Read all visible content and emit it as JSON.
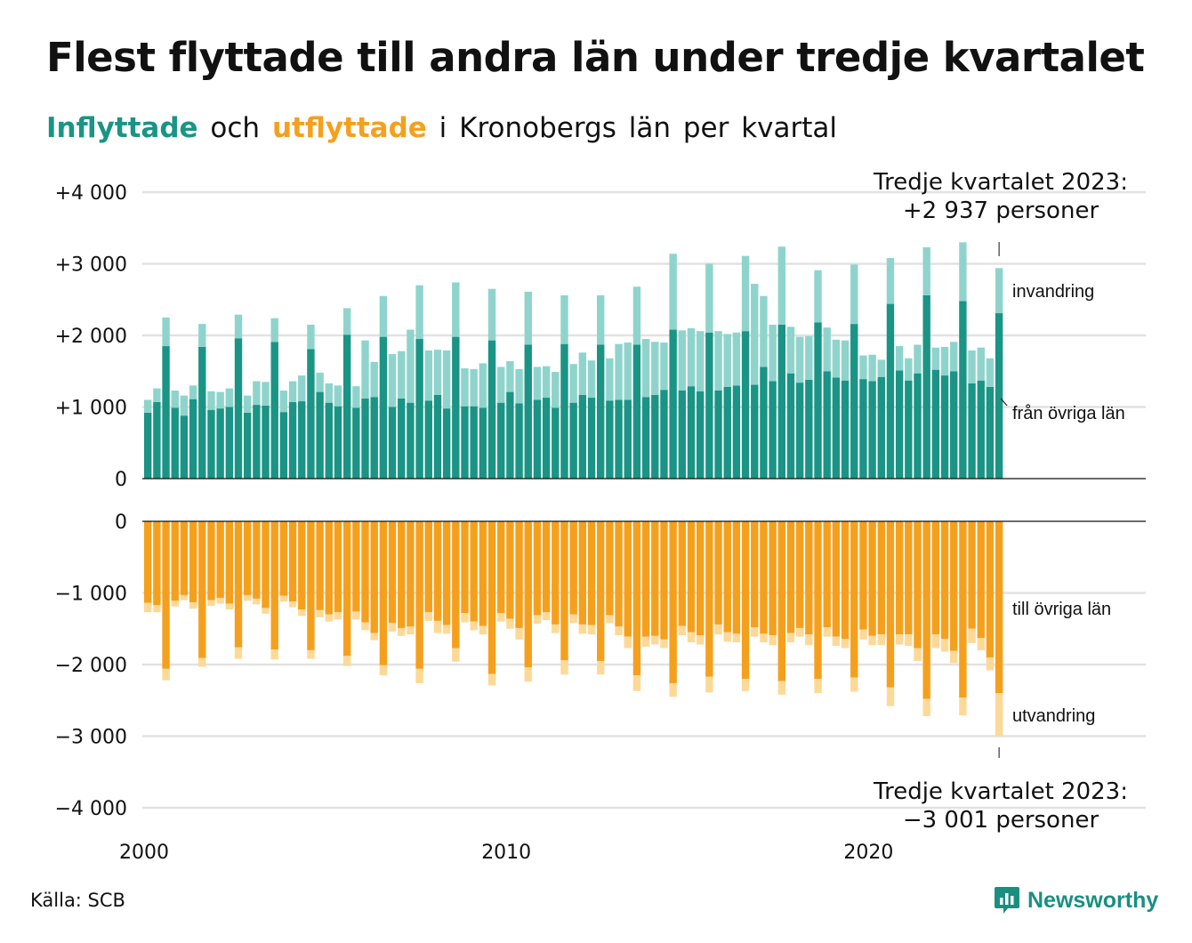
{
  "title": "Flest flyttade till andra län under tredje kvartalet",
  "subtitle": {
    "part_in": "Inflyttade",
    "part_och": "och",
    "part_out": "utflyttade",
    "part_rest": "i Kronobergs län per kvartal"
  },
  "source": "Källa: SCB",
  "brand": "Newsworthy",
  "colors": {
    "in_domestic": "#1a9485",
    "in_immigration": "#8fd4cc",
    "out_domestic": "#f5a01d",
    "out_emigration": "#fdd998",
    "grid": "#e2e2e2",
    "brand": "#1a8f80"
  },
  "annotations": {
    "top_line1": "Tredje kvartalet 2023:",
    "top_line2": "+2 937 personer",
    "bottom_line1": "Tredje kvartalet 2023:",
    "bottom_line2": "−3 001 personer"
  },
  "chart_data": {
    "type": "bar",
    "stacked": true,
    "x_start": "2000 Q1",
    "x_end": "2023 Q3",
    "x_ticks": [
      "2000",
      "2010",
      "2020"
    ],
    "top_panel": {
      "ylim": [
        0,
        4000
      ],
      "y_ticks": [
        "0",
        "+1 000",
        "+2 000",
        "+3 000",
        "+4 000"
      ],
      "series": [
        {
          "name": "från övriga län",
          "values": [
            920,
            1070,
            1850,
            990,
            880,
            1110,
            1840,
            960,
            980,
            1000,
            1960,
            920,
            1030,
            1020,
            1910,
            930,
            1070,
            1080,
            1810,
            1210,
            1060,
            1010,
            2010,
            990,
            1120,
            1140,
            1980,
            1000,
            1120,
            1060,
            1950,
            1090,
            1170,
            980,
            1980,
            1010,
            1010,
            990,
            1930,
            1060,
            1210,
            1050,
            1870,
            1100,
            1130,
            990,
            1880,
            1060,
            1170,
            1130,
            1870,
            1090,
            1100,
            1100,
            1870,
            1140,
            1170,
            1240,
            2080,
            1230,
            1290,
            1220,
            2040,
            1230,
            1280,
            1300,
            2060,
            1310,
            1560,
            1360,
            2150,
            1470,
            1340,
            1380,
            2180,
            1500,
            1410,
            1370,
            2160,
            1390,
            1360,
            1420,
            2440,
            1510,
            1370,
            1470,
            2560,
            1520,
            1440,
            1500,
            2480,
            1330,
            1370,
            1280,
            2310
          ]
        },
        {
          "name": "invandring",
          "values": [
            180,
            190,
            400,
            240,
            280,
            190,
            320,
            260,
            230,
            260,
            330,
            240,
            330,
            330,
            330,
            300,
            290,
            360,
            340,
            270,
            270,
            290,
            370,
            300,
            810,
            490,
            570,
            740,
            660,
            1020,
            750,
            700,
            630,
            810,
            760,
            530,
            520,
            620,
            720,
            500,
            430,
            480,
            740,
            460,
            440,
            500,
            680,
            540,
            590,
            520,
            690,
            590,
            780,
            800,
            810,
            810,
            740,
            660,
            1060,
            840,
            810,
            840,
            960,
            830,
            740,
            740,
            1050,
            1410,
            990,
            790,
            1090,
            650,
            640,
            610,
            730,
            610,
            530,
            560,
            830,
            330,
            370,
            240,
            640,
            340,
            310,
            400,
            670,
            310,
            400,
            410,
            820,
            460,
            460,
            400,
            630
          ]
        }
      ]
    },
    "bottom_panel": {
      "ylim": [
        -4000,
        0
      ],
      "y_ticks": [
        "0",
        "−1 000",
        "−2 000",
        "−3 000",
        "−4 000"
      ],
      "series": [
        {
          "name": "till övriga län",
          "values": [
            -1140,
            -1170,
            -2060,
            -1110,
            -1030,
            -1130,
            -1910,
            -1100,
            -1070,
            -1150,
            -1760,
            -1030,
            -1080,
            -1210,
            -1790,
            -1040,
            -1120,
            -1230,
            -1800,
            -1240,
            -1300,
            -1270,
            -1880,
            -1260,
            -1410,
            -1560,
            -2010,
            -1420,
            -1490,
            -1470,
            -2060,
            -1270,
            -1390,
            -1450,
            -1770,
            -1280,
            -1400,
            -1460,
            -2130,
            -1280,
            -1360,
            -1490,
            -2040,
            -1310,
            -1270,
            -1440,
            -1940,
            -1300,
            -1440,
            -1450,
            -1950,
            -1310,
            -1470,
            -1610,
            -2150,
            -1610,
            -1600,
            -1650,
            -2260,
            -1460,
            -1550,
            -1590,
            -2170,
            -1440,
            -1550,
            -1570,
            -2200,
            -1480,
            -1570,
            -1590,
            -2230,
            -1560,
            -1490,
            -1580,
            -2200,
            -1480,
            -1610,
            -1640,
            -2180,
            -1510,
            -1600,
            -1580,
            -2320,
            -1580,
            -1580,
            -1770,
            -2480,
            -1580,
            -1640,
            -1810,
            -2460,
            -1500,
            -1630,
            -1900,
            -2400
          ]
        },
        {
          "name": "utvandring",
          "values": [
            -130,
            -100,
            -160,
            -80,
            -70,
            -90,
            -120,
            -80,
            -80,
            -80,
            -160,
            -80,
            -80,
            -80,
            -140,
            -80,
            -80,
            -90,
            -120,
            -100,
            -100,
            -100,
            -140,
            -110,
            -110,
            -100,
            -140,
            -120,
            -110,
            -110,
            -200,
            -120,
            -170,
            -120,
            -190,
            -130,
            -120,
            -120,
            -160,
            -120,
            -140,
            -160,
            -200,
            -120,
            -110,
            -120,
            -200,
            -120,
            -130,
            -130,
            -190,
            -110,
            -120,
            -160,
            -220,
            -140,
            -120,
            -120,
            -190,
            -130,
            -140,
            -130,
            -220,
            -140,
            -130,
            -120,
            -170,
            -130,
            -120,
            -140,
            -190,
            -130,
            -120,
            -150,
            -200,
            -130,
            -130,
            -130,
            -200,
            -140,
            -130,
            -150,
            -260,
            -140,
            -160,
            -180,
            -240,
            -190,
            -180,
            -170,
            -250,
            -200,
            -170,
            -180,
            -601
          ]
        }
      ]
    },
    "segment_labels": {
      "top_upper": "invandring",
      "top_lower": "från övriga län",
      "bottom_upper": "till övriga län",
      "bottom_lower": "utvandring"
    },
    "grid": true
  }
}
